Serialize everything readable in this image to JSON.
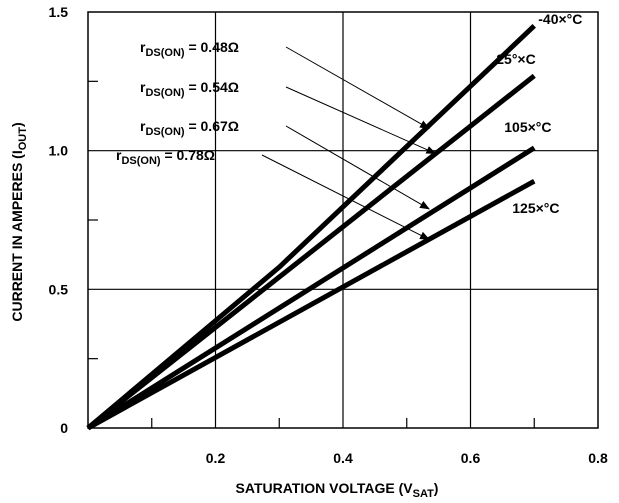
{
  "chart_data": {
    "type": "line",
    "xlabel": {
      "main": "SATURATION VOLTAGE (V",
      "sub": "SAT",
      "close": ")"
    },
    "ylabel": {
      "main": "CURRENT IN AMPERES (I",
      "sub": "OUT",
      "close": ")"
    },
    "xlim": [
      0,
      0.8
    ],
    "ylim": [
      0,
      1.5
    ],
    "x_ticks": [
      0.2,
      0.4,
      0.6,
      0.8
    ],
    "x_tick_labels": [
      "0.2",
      "0.4",
      "0.6",
      "0.8"
    ],
    "y_ticks": [
      0,
      0.5,
      1.0,
      1.5
    ],
    "y_tick_labels": [
      "0",
      "0.5",
      "1.0",
      "1.5"
    ],
    "grid": true,
    "series": [
      {
        "name": "-40×°C",
        "x": [
          0,
          0.3,
          0.7
        ],
        "y": [
          0,
          0.58,
          1.45
        ]
      },
      {
        "name": "25°×C",
        "x": [
          0,
          0.7
        ],
        "y": [
          0,
          1.27
        ]
      },
      {
        "name": "105×°C",
        "x": [
          0,
          0.7
        ],
        "y": [
          0,
          1.01
        ]
      },
      {
        "name": "125×°C",
        "x": [
          0,
          0.7
        ],
        "y": [
          0,
          0.89
        ]
      }
    ],
    "annotations": [
      {
        "prefix": "r",
        "sub": "DS(ON)",
        "value": " = 0.48Ω",
        "target_x": 0.535,
        "target_y": 1.08
      },
      {
        "prefix": "r",
        "sub": "DS(ON)",
        "value": " = 0.54Ω",
        "target_x": 0.545,
        "target_y": 0.99
      },
      {
        "prefix": "r",
        "sub": "DS(ON)",
        "value": " = 0.67Ω",
        "target_x": 0.535,
        "target_y": 0.79
      },
      {
        "prefix": "r",
        "sub": "DS(ON)",
        "value": " = 0.78Ω",
        "target_x": 0.535,
        "target_y": 0.68
      }
    ]
  }
}
